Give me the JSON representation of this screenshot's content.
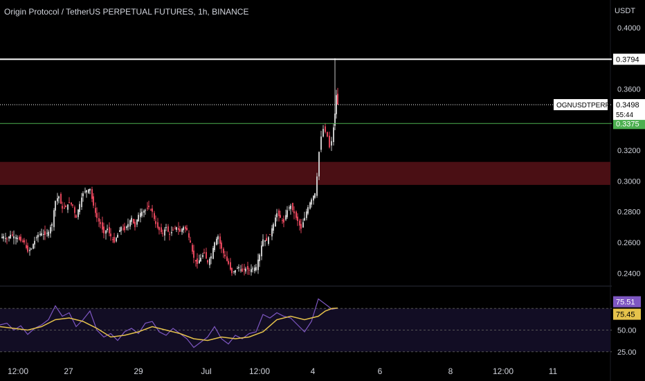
{
  "header": {
    "title": "Origin Protocol / TetherUS PERPETUAL FUTURES, 1h, BINANCE",
    "unit": "USDT"
  },
  "colors": {
    "background": "#000000",
    "up": "#c8c8c8",
    "down": "#e0455a",
    "text": "#d1d4dc",
    "resistance": "#ffffff",
    "support": "#4caf50",
    "zone": "#4a0f14",
    "rsi": "#7e57c2",
    "rsi_ma": "#e6c34b"
  },
  "chart_data": [
    {
      "type": "candlestick",
      "symbol": "OGNUSDTPERP",
      "timeframe": "1h",
      "yscale": "linear",
      "ylim": [
        0.232,
        0.418
      ],
      "y_ticks": [
        "0.4000",
        "0.3800",
        "0.3600",
        "0.3400",
        "0.3200",
        "0.3000",
        "0.2800",
        "0.2600",
        "0.2400"
      ],
      "x_ticks": [
        "12:00",
        "27",
        "29",
        "Jul",
        "12:00",
        "4",
        "6",
        "8",
        "12:00",
        "11"
      ],
      "price_path": [
        [
          0,
          0.263
        ],
        [
          5,
          0.264
        ],
        [
          10,
          0.262
        ],
        [
          15,
          0.265
        ],
        [
          20,
          0.264
        ],
        [
          25,
          0.263
        ],
        [
          30,
          0.261
        ],
        [
          35,
          0.26
        ],
        [
          40,
          0.254
        ],
        [
          45,
          0.256
        ],
        [
          50,
          0.261
        ],
        [
          55,
          0.265
        ],
        [
          60,
          0.266
        ],
        [
          65,
          0.265
        ],
        [
          70,
          0.267
        ],
        [
          75,
          0.272
        ],
        [
          80,
          0.287
        ],
        [
          85,
          0.29
        ],
        [
          90,
          0.282
        ],
        [
          95,
          0.283
        ],
        [
          100,
          0.286
        ],
        [
          105,
          0.284
        ],
        [
          110,
          0.276
        ],
        [
          115,
          0.285
        ],
        [
          120,
          0.292
        ],
        [
          125,
          0.294
        ],
        [
          130,
          0.295
        ],
        [
          135,
          0.284
        ],
        [
          140,
          0.276
        ],
        [
          145,
          0.272
        ],
        [
          150,
          0.266
        ],
        [
          155,
          0.269
        ],
        [
          160,
          0.264
        ],
        [
          165,
          0.26
        ],
        [
          170,
          0.265
        ],
        [
          175,
          0.27
        ],
        [
          180,
          0.268
        ],
        [
          185,
          0.272
        ],
        [
          190,
          0.276
        ],
        [
          195,
          0.27
        ],
        [
          200,
          0.278
        ],
        [
          205,
          0.28
        ],
        [
          210,
          0.281
        ],
        [
          215,
          0.283
        ],
        [
          220,
          0.28
        ],
        [
          225,
          0.272
        ],
        [
          230,
          0.268
        ],
        [
          235,
          0.266
        ],
        [
          240,
          0.27
        ],
        [
          245,
          0.265
        ],
        [
          250,
          0.268
        ],
        [
          255,
          0.27
        ],
        [
          260,
          0.267
        ],
        [
          265,
          0.27
        ],
        [
          270,
          0.268
        ],
        [
          275,
          0.26
        ],
        [
          280,
          0.25
        ],
        [
          285,
          0.246
        ],
        [
          290,
          0.25
        ],
        [
          295,
          0.253
        ],
        [
          300,
          0.247
        ],
        [
          305,
          0.251
        ],
        [
          310,
          0.26
        ],
        [
          315,
          0.264
        ],
        [
          320,
          0.256
        ],
        [
          325,
          0.251
        ],
        [
          330,
          0.246
        ],
        [
          335,
          0.24
        ],
        [
          340,
          0.242
        ],
        [
          345,
          0.244
        ],
        [
          350,
          0.241
        ],
        [
          355,
          0.243
        ],
        [
          360,
          0.242
        ],
        [
          365,
          0.243
        ],
        [
          370,
          0.244
        ],
        [
          375,
          0.252
        ],
        [
          380,
          0.262
        ],
        [
          385,
          0.261
        ],
        [
          390,
          0.265
        ],
        [
          395,
          0.272
        ],
        [
          400,
          0.279
        ],
        [
          405,
          0.276
        ],
        [
          410,
          0.273
        ],
        [
          415,
          0.281
        ],
        [
          420,
          0.284
        ],
        [
          425,
          0.279
        ],
        [
          430,
          0.274
        ],
        [
          435,
          0.269
        ],
        [
          440,
          0.276
        ],
        [
          445,
          0.283
        ],
        [
          450,
          0.288
        ],
        [
          455,
          0.292
        ],
        [
          458,
          0.303
        ],
        [
          461,
          0.319
        ],
        [
          464,
          0.329
        ],
        [
          467,
          0.334
        ],
        [
          470,
          0.332
        ],
        [
          473,
          0.329
        ],
        [
          476,
          0.322
        ],
        [
          479,
          0.326
        ],
        [
          482,
          0.335
        ],
        [
          484,
          0.344
        ],
        [
          486,
          0.356
        ],
        [
          488,
          0.3498
        ]
      ],
      "levels": [
        {
          "price": 0.3794,
          "label": "0.3794",
          "style": "solid",
          "color": "#ffffff"
        },
        {
          "price": 0.3375,
          "label": "0.3375",
          "style": "solid",
          "color": "#4caf50"
        },
        {
          "price": 0.3498,
          "label": "0.3498",
          "style": "dotted",
          "color": "#ffffff"
        }
      ],
      "zone": {
        "from": 0.2975,
        "to": 0.3125
      },
      "last_price": {
        "symbol": "OGNUSDTPERP",
        "value": "0.3498",
        "countdown": "55:44"
      }
    },
    {
      "type": "line",
      "name": "RSI",
      "ylim": [
        20,
        100
      ],
      "y_ticks": [
        "50.00",
        "25.00"
      ],
      "bands": [
        25,
        50,
        75
      ],
      "rsi_value": "75.51",
      "ma_value": "75.45",
      "rsi_path": [
        [
          0,
          56
        ],
        [
          10,
          58
        ],
        [
          20,
          50
        ],
        [
          30,
          55
        ],
        [
          40,
          45
        ],
        [
          50,
          52
        ],
        [
          60,
          56
        ],
        [
          70,
          62
        ],
        [
          80,
          78
        ],
        [
          90,
          66
        ],
        [
          100,
          70
        ],
        [
          110,
          54
        ],
        [
          120,
          62
        ],
        [
          130,
          72
        ],
        [
          140,
          50
        ],
        [
          150,
          42
        ],
        [
          160,
          46
        ],
        [
          170,
          38
        ],
        [
          180,
          48
        ],
        [
          190,
          52
        ],
        [
          200,
          46
        ],
        [
          210,
          58
        ],
        [
          220,
          60
        ],
        [
          230,
          48
        ],
        [
          240,
          44
        ],
        [
          250,
          52
        ],
        [
          260,
          46
        ],
        [
          270,
          40
        ],
        [
          280,
          30
        ],
        [
          290,
          36
        ],
        [
          300,
          42
        ],
        [
          310,
          54
        ],
        [
          320,
          40
        ],
        [
          330,
          34
        ],
        [
          340,
          44
        ],
        [
          350,
          40
        ],
        [
          360,
          46
        ],
        [
          370,
          48
        ],
        [
          380,
          68
        ],
        [
          390,
          64
        ],
        [
          400,
          70
        ],
        [
          410,
          66
        ],
        [
          420,
          64
        ],
        [
          430,
          56
        ],
        [
          440,
          48
        ],
        [
          450,
          60
        ],
        [
          460,
          86
        ],
        [
          470,
          80
        ],
        [
          480,
          74
        ],
        [
          488,
          75.51
        ]
      ],
      "ma_path": [
        [
          0,
          54
        ],
        [
          20,
          52
        ],
        [
          40,
          50
        ],
        [
          60,
          54
        ],
        [
          80,
          62
        ],
        [
          100,
          64
        ],
        [
          120,
          60
        ],
        [
          140,
          52
        ],
        [
          160,
          42
        ],
        [
          180,
          44
        ],
        [
          200,
          48
        ],
        [
          220,
          54
        ],
        [
          240,
          50
        ],
        [
          260,
          46
        ],
        [
          280,
          40
        ],
        [
          300,
          38
        ],
        [
          320,
          42
        ],
        [
          340,
          40
        ],
        [
          360,
          42
        ],
        [
          380,
          48
        ],
        [
          400,
          62
        ],
        [
          420,
          66
        ],
        [
          440,
          62
        ],
        [
          460,
          66
        ],
        [
          470,
          72
        ],
        [
          480,
          75
        ],
        [
          488,
          75.45
        ]
      ]
    }
  ]
}
